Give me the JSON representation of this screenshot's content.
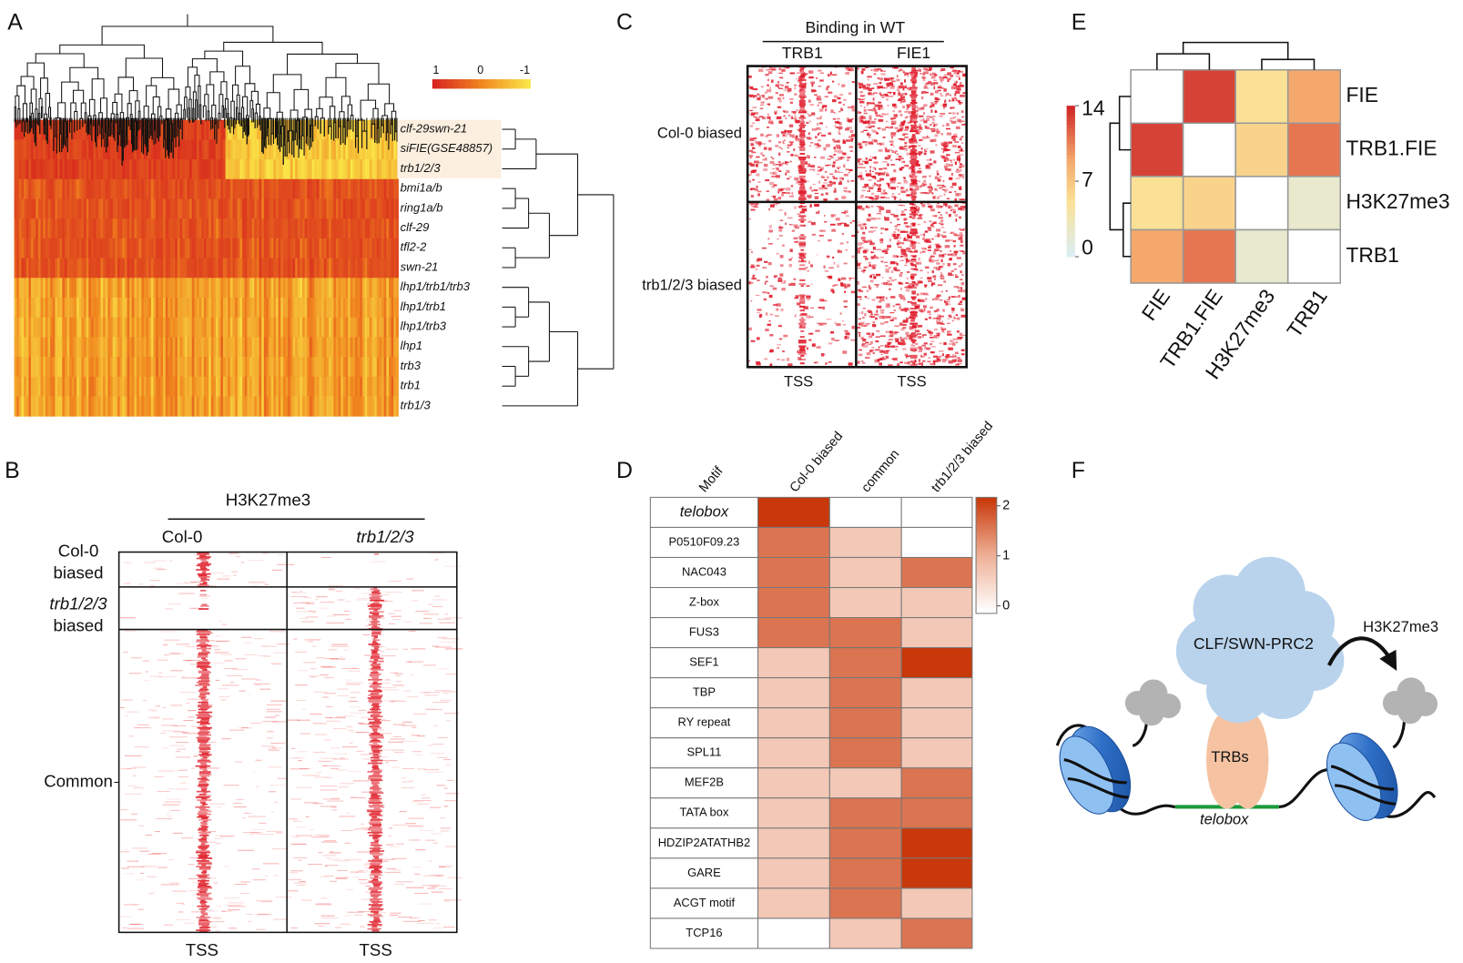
{
  "panel_labels": [
    "A",
    "B",
    "C",
    "D",
    "E",
    "F"
  ],
  "A": {
    "scale_ticks": [
      1,
      0,
      -1
    ],
    "rows": [
      "clf-29swn-21",
      "siFIE(GSE48857)",
      "trb1/2/3",
      "bmi1a/b",
      "ring1a/b",
      "clf-29",
      "tfl2-2",
      "swn-21",
      "lhp1/trb1/trb3",
      "lhp1/trb1",
      "lhp1/trb3",
      "lhp1",
      "trb3",
      "trb1",
      "trb1/3"
    ]
  },
  "B": {
    "title": "H3K27me3",
    "columns": [
      "Col-0",
      "trb1/2/3"
    ],
    "groups": [
      [
        "Col-0",
        "biased"
      ],
      [
        "trb1/2/3",
        "biased"
      ],
      [
        "Common"
      ]
    ],
    "x_labels": [
      "TSS",
      "TSS"
    ]
  },
  "C": {
    "title": "Binding in WT",
    "columns": [
      "TRB1",
      "FIE1"
    ],
    "groups": [
      "Col-0 biased",
      "trb1/2/3 biased"
    ],
    "x_labels": [
      "TSS",
      "TSS"
    ]
  },
  "D": {
    "header": "Motif",
    "columns": [
      "Col-0 biased",
      "common",
      "trb1/2/3 biased"
    ],
    "motifs": [
      "telobox",
      "P0510F09.23",
      "NAC043",
      "Z-box",
      "FUS3",
      "SEF1",
      "TBP",
      "RY repeat",
      "SPL11",
      "MEF2B",
      "TATA box",
      "HDZIP2ATATHB2",
      "GARE",
      "ACGT motif",
      "TCP16"
    ],
    "values": [
      [
        2,
        0,
        0
      ],
      [
        1.5,
        0.7,
        0
      ],
      [
        1.5,
        0.7,
        1.5
      ],
      [
        1.5,
        0.7,
        0.7
      ],
      [
        1.5,
        1.5,
        0.7
      ],
      [
        0.7,
        1.5,
        2
      ],
      [
        0.7,
        1.5,
        0.7
      ],
      [
        0.7,
        1.5,
        0.7
      ],
      [
        0.7,
        1.5,
        0.7
      ],
      [
        0.7,
        0.7,
        1.5
      ],
      [
        0.7,
        1.5,
        1.5
      ],
      [
        0.7,
        1.5,
        2
      ],
      [
        0.7,
        1.5,
        2
      ],
      [
        0.7,
        1.5,
        0.7
      ],
      [
        0,
        0.7,
        1.5
      ]
    ],
    "scale_ticks": [
      2,
      1,
      0
    ]
  },
  "E": {
    "labels": [
      "FIE",
      "TRB1.FIE",
      "H3K27me3",
      "TRB1"
    ],
    "values": [
      [
        null,
        13,
        5,
        9
      ],
      [
        13,
        null,
        6,
        11
      ],
      [
        5,
        6,
        null,
        2
      ],
      [
        9,
        11,
        2,
        null
      ]
    ],
    "scale_ticks": [
      14,
      7,
      0
    ]
  },
  "F": {
    "complex": "CLF/SWN-PRC2",
    "mark": "H3K27me3",
    "binder": "TRBs",
    "motif": "telobox"
  }
}
